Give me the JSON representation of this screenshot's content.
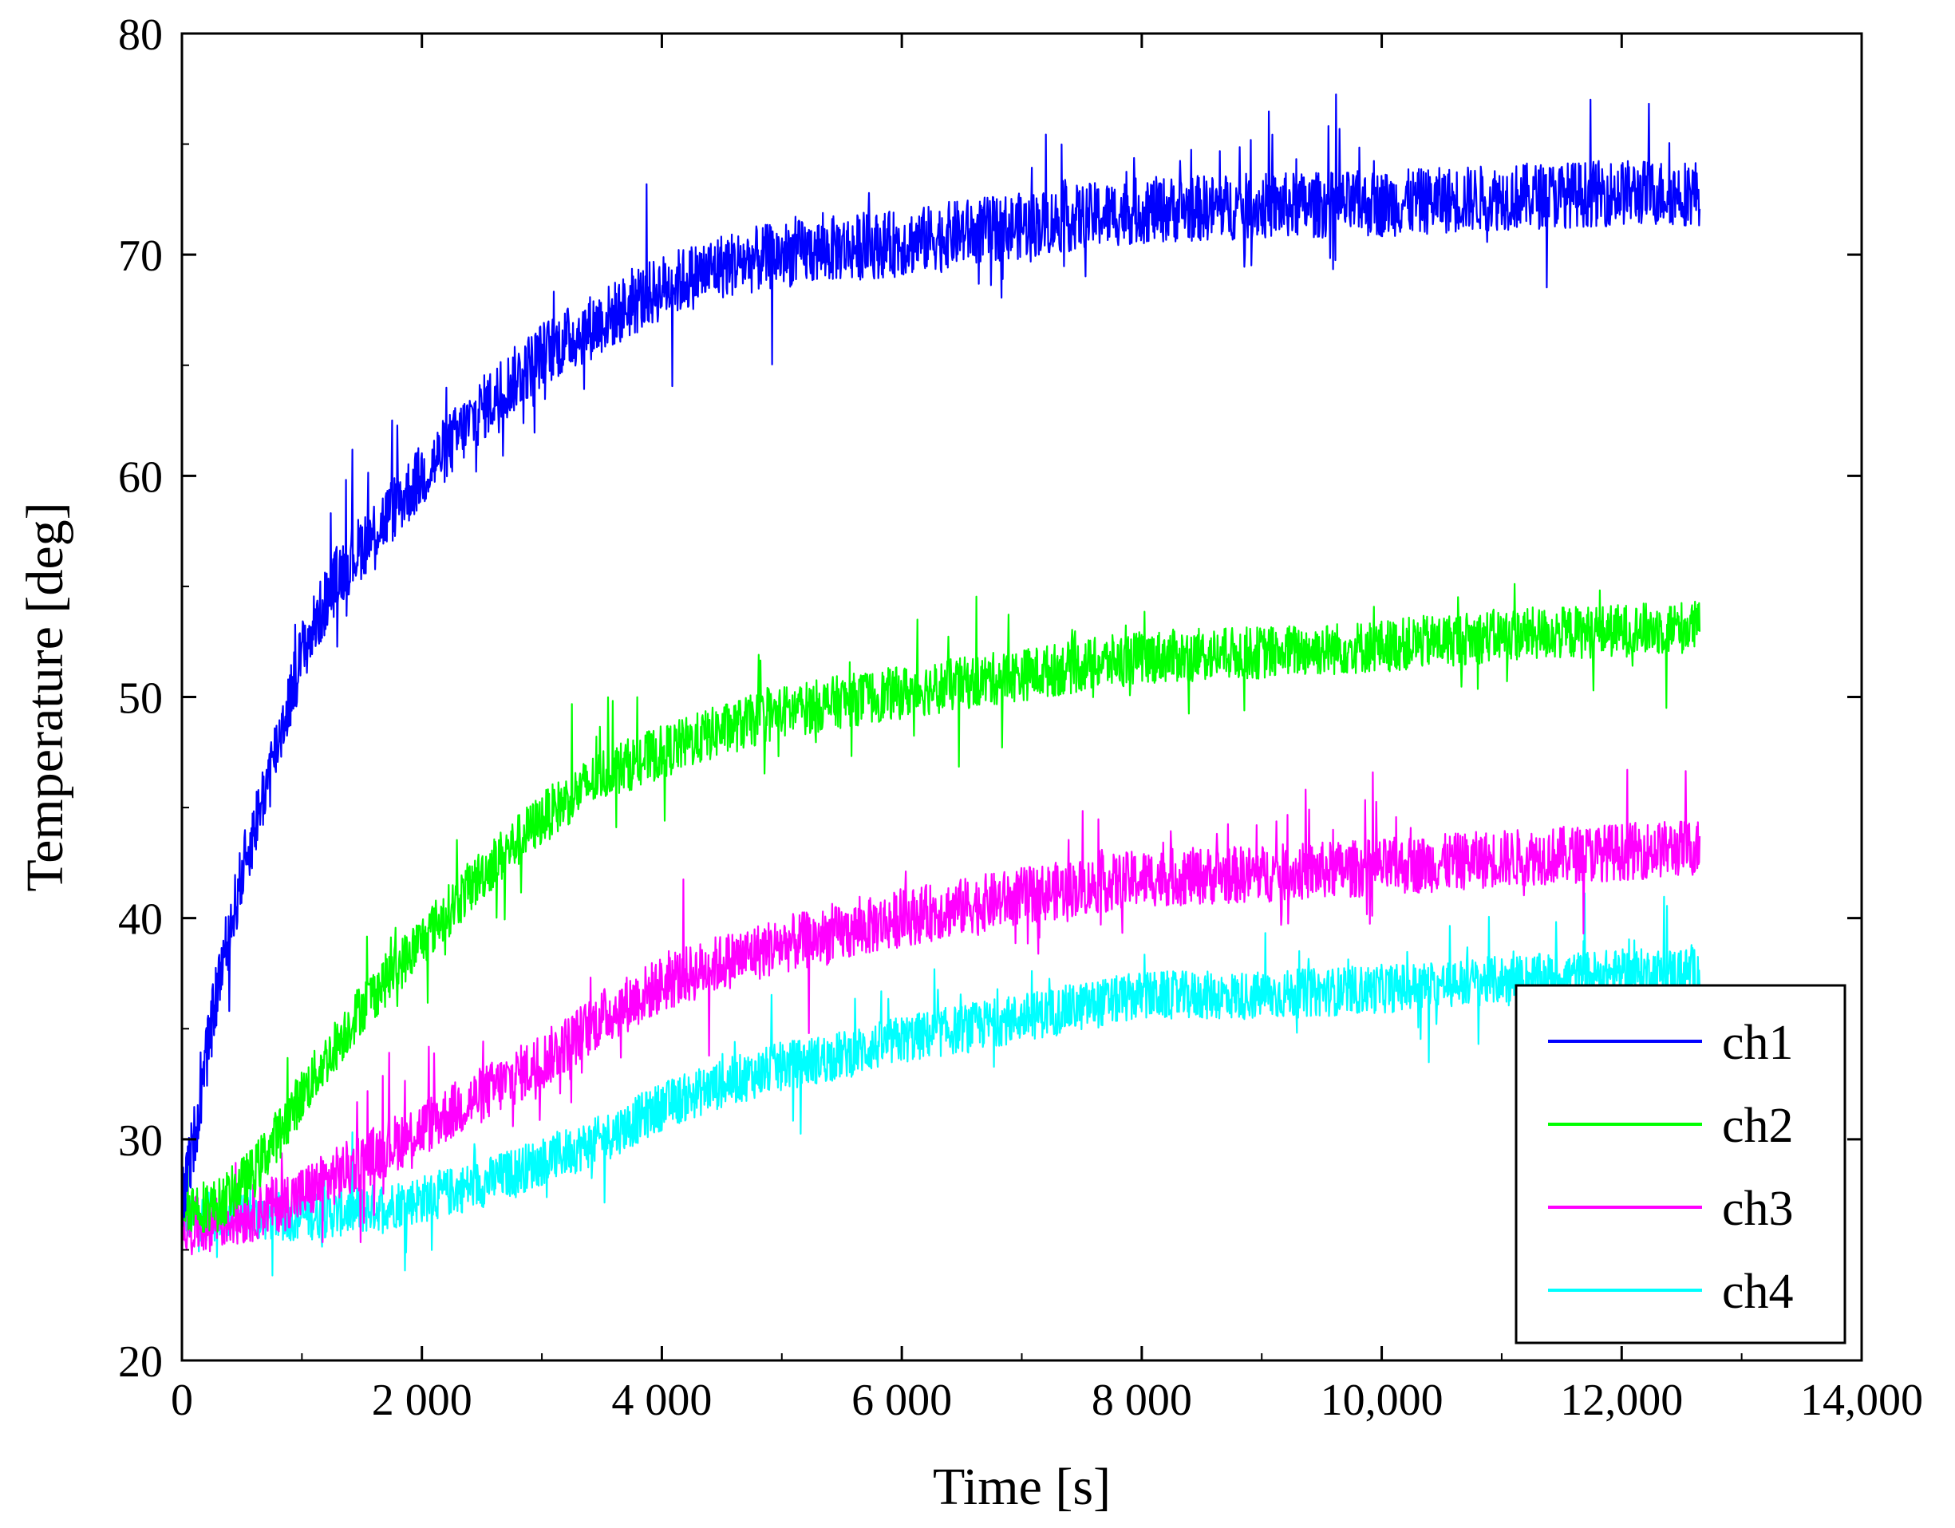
{
  "chart_data": {
    "type": "line",
    "xlabel": "Time [s]",
    "ylabel": "Temperature [deg]",
    "xlim": [
      0,
      14000
    ],
    "ylim": [
      20,
      80
    ],
    "x_ticks": [
      0,
      2000,
      4000,
      6000,
      8000,
      10000,
      12000,
      14000
    ],
    "x_tick_labels": [
      "0",
      "2 000",
      "4 000",
      "6 000",
      "8 000",
      "10,000",
      "12,000",
      "14,000"
    ],
    "y_ticks": [
      20,
      30,
      40,
      50,
      60,
      70,
      80
    ],
    "y_tick_labels": [
      "20",
      "30",
      "40",
      "50",
      "60",
      "70",
      "80"
    ],
    "grid": false,
    "legend_position": "bottom-right",
    "x_end": 12650,
    "series": [
      {
        "name": "ch1",
        "color": "#0000ff",
        "x": [
          0,
          100,
          300,
          500,
          800,
          1000,
          1300,
          1600,
          2000,
          2500,
          3000,
          3500,
          4000,
          4500,
          5000,
          5500,
          6000,
          6500,
          7000,
          7500,
          8000,
          9000,
          10000,
          11000,
          12000,
          12650
        ],
        "y": [
          27,
          30,
          37,
          42,
          48,
          52,
          55.5,
          57.5,
          60,
          63,
          65.5,
          67,
          68.5,
          69.5,
          70,
          70.3,
          70.5,
          71,
          71.3,
          71.7,
          72,
          72.2,
          72.3,
          72.6,
          72.8,
          72.8
        ],
        "noise": 1.5
      },
      {
        "name": "ch2",
        "color": "#00ff00",
        "x": [
          0,
          300,
          600,
          1000,
          1500,
          2000,
          2500,
          3000,
          3500,
          4000,
          4500,
          5000,
          5500,
          6000,
          7000,
          8000,
          9000,
          10000,
          11000,
          12000,
          12650
        ],
        "y": [
          27,
          27,
          28.5,
          32,
          36,
          39,
          42,
          44.5,
          46.5,
          47.5,
          48.5,
          49.3,
          49.8,
          50.2,
          51,
          51.8,
          52,
          52.3,
          52.8,
          53,
          53.2
        ],
        "noise": 1.2
      },
      {
        "name": "ch3",
        "color": "#ff00ff",
        "x": [
          0,
          500,
          1000,
          1500,
          2000,
          2500,
          3000,
          3500,
          4000,
          4500,
          5000,
          5500,
          6000,
          7000,
          8000,
          9000,
          10000,
          11000,
          12000,
          12650
        ],
        "y": [
          26,
          26.5,
          27.5,
          29,
          30.5,
          32,
          33.5,
          35.5,
          37,
          38,
          38.8,
          39.3,
          40,
          41,
          41.8,
          42,
          42.3,
          42.7,
          43,
          43.2
        ],
        "noise": 1.3
      },
      {
        "name": "ch4",
        "color": "#00ffff",
        "x": [
          0,
          500,
          1000,
          1500,
          2000,
          2500,
          3000,
          3500,
          4000,
          4500,
          5000,
          5500,
          6000,
          7000,
          8000,
          9000,
          10000,
          11000,
          12000,
          12650
        ],
        "y": [
          26.5,
          26.5,
          26.5,
          26.8,
          27.3,
          28,
          29,
          30,
          31.5,
          32.5,
          33.3,
          33.8,
          34.5,
          35.5,
          36.5,
          36.5,
          36.8,
          37.2,
          37.5,
          37.6
        ],
        "noise": 1.1
      }
    ]
  }
}
